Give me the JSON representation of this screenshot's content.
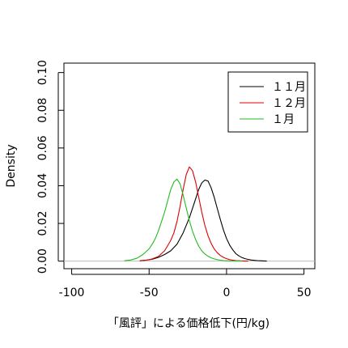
{
  "chart_data": {
    "type": "line",
    "title": "",
    "xlabel": "「風評」による価格低下(円/kg)",
    "ylabel": "Density",
    "xlim": [
      -105,
      57
    ],
    "ylim": [
      -0.004,
      0.105
    ],
    "x_ticks": [
      -100,
      -50,
      0,
      50
    ],
    "x_tick_labels": [
      "-100",
      "-50",
      "0",
      "50"
    ],
    "y_ticks": [
      0.0,
      0.02,
      0.04,
      0.06,
      0.08,
      0.1
    ],
    "y_tick_labels": [
      "0.00",
      "0.02",
      "0.04",
      "0.06",
      "0.08",
      "0.10"
    ],
    "baseline": {
      "y": 0,
      "color": "#bbbbbb"
    },
    "grid": false,
    "legend_position": "top-right",
    "series": [
      {
        "name": "１１月",
        "color": "#000000",
        "x": [
          -56,
          -52,
          -48,
          -44,
          -40,
          -36,
          -32,
          -28,
          -24,
          -20,
          -18,
          -16,
          -14,
          -12,
          -10,
          -8,
          -6,
          -4,
          -2,
          0,
          2,
          4,
          6,
          8,
          10,
          12,
          14,
          16,
          18,
          20,
          22,
          24,
          26
        ],
        "y": [
          0.0002,
          0.0005,
          0.001,
          0.002,
          0.0035,
          0.0055,
          0.009,
          0.015,
          0.023,
          0.033,
          0.038,
          0.0415,
          0.043,
          0.0425,
          0.039,
          0.034,
          0.028,
          0.022,
          0.0165,
          0.012,
          0.0085,
          0.006,
          0.004,
          0.0028,
          0.0019,
          0.0013,
          0.0009,
          0.0006,
          0.0004,
          0.0003,
          0.0002,
          0.0001,
          5e-05
        ]
      },
      {
        "name": "１２月",
        "color": "#dd0000",
        "x": [
          -56,
          -52,
          -48,
          -44,
          -40,
          -36,
          -34,
          -32,
          -30,
          -28,
          -26,
          -24,
          -22,
          -20,
          -18,
          -16,
          -14,
          -12,
          -10,
          -8,
          -6,
          -4,
          -2,
          0,
          2,
          4,
          6,
          8,
          10,
          12,
          14
        ],
        "y": [
          0.0002,
          0.0005,
          0.0012,
          0.0025,
          0.0055,
          0.011,
          0.015,
          0.021,
          0.029,
          0.038,
          0.046,
          0.05,
          0.048,
          0.042,
          0.034,
          0.026,
          0.019,
          0.0135,
          0.0095,
          0.0065,
          0.0045,
          0.003,
          0.002,
          0.0013,
          0.0008,
          0.0005,
          0.0003,
          0.0002,
          0.0001,
          5e-05,
          2e-05
        ]
      },
      {
        "name": "１月",
        "color": "#22bb22",
        "x": [
          -66,
          -62,
          -58,
          -54,
          -50,
          -48,
          -46,
          -44,
          -42,
          -40,
          -38,
          -36,
          -34,
          -32,
          -30,
          -28,
          -26,
          -24,
          -22,
          -20,
          -18,
          -16,
          -14,
          -12,
          -10,
          -8,
          -6,
          -4,
          -2,
          0,
          2,
          4,
          6,
          8,
          10
        ],
        "y": [
          0.0002,
          0.0006,
          0.0015,
          0.0035,
          0.0065,
          0.009,
          0.012,
          0.016,
          0.021,
          0.026,
          0.032,
          0.038,
          0.042,
          0.0435,
          0.041,
          0.035,
          0.028,
          0.0215,
          0.016,
          0.0115,
          0.008,
          0.0055,
          0.0038,
          0.0026,
          0.0018,
          0.0012,
          0.0008,
          0.0005,
          0.0003,
          0.0002,
          0.0001,
          6e-05,
          3e-05,
          2e-05,
          1e-05
        ]
      }
    ]
  }
}
